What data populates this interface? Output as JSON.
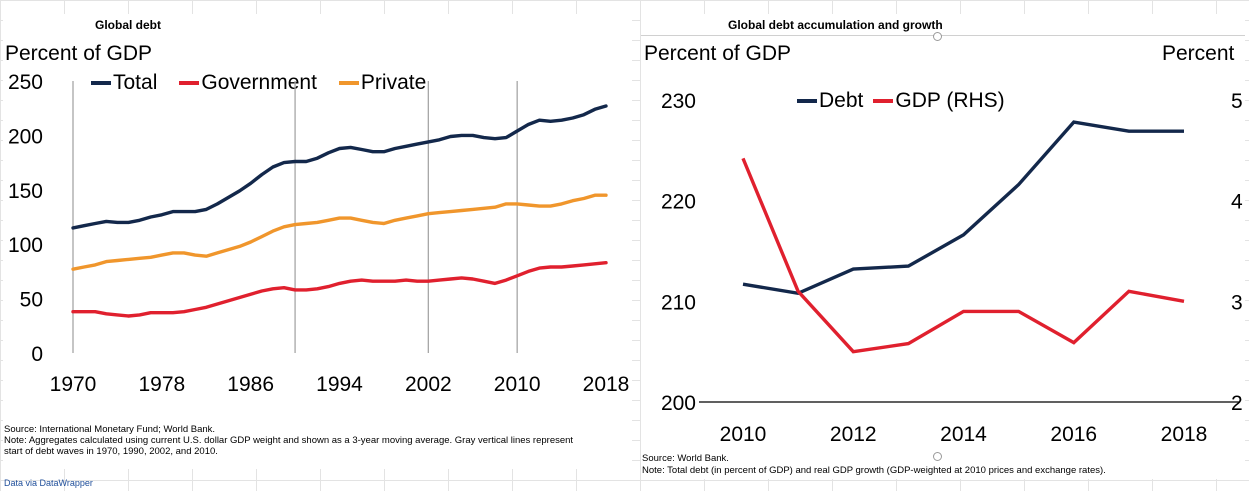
{
  "colors": {
    "total": "#13284b",
    "government": "#e0202e",
    "private": "#f0962c",
    "debt": "#13284b",
    "gdp": "#e0202e",
    "wave_line": "#a6a6a6",
    "link": "#1f4e9a"
  },
  "chart_data": [
    {
      "type": "line",
      "title": "Global debt",
      "ylabel": "Percent of GDP",
      "xlabel": "",
      "xlim": [
        1970,
        2018
      ],
      "ylim": [
        0,
        250
      ],
      "x_ticks": [
        "1970",
        "1978",
        "1986",
        "1994",
        "2002",
        "2010",
        "2018"
      ],
      "y_ticks": [
        "0",
        "50",
        "100",
        "150",
        "200",
        "250"
      ],
      "wave_years": [
        1970,
        1990,
        2002,
        2010
      ],
      "x": [
        1970,
        1971,
        1972,
        1973,
        1974,
        1975,
        1976,
        1977,
        1978,
        1979,
        1980,
        1981,
        1982,
        1983,
        1984,
        1985,
        1986,
        1987,
        1988,
        1989,
        1990,
        1991,
        1992,
        1993,
        1994,
        1995,
        1996,
        1997,
        1998,
        1999,
        2000,
        2001,
        2002,
        2003,
        2004,
        2005,
        2006,
        2007,
        2008,
        2009,
        2010,
        2011,
        2012,
        2013,
        2014,
        2015,
        2016,
        2017,
        2018
      ],
      "series": [
        {
          "name": "Total",
          "color": "#13284b",
          "values": [
            115,
            117,
            119,
            121,
            120,
            120,
            122,
            125,
            127,
            130,
            130,
            130,
            132,
            137,
            143,
            149,
            156,
            164,
            171,
            175,
            176,
            176,
            179,
            184,
            188,
            189,
            187,
            185,
            185,
            188,
            190,
            192,
            194,
            196,
            199,
            200,
            200,
            198,
            197,
            198,
            204,
            210,
            214,
            213,
            214,
            216,
            219,
            224,
            227
          ]
        },
        {
          "name": "Government",
          "color": "#e0202e",
          "values": [
            38,
            38,
            38,
            36,
            35,
            34,
            35,
            37,
            37,
            37,
            38,
            40,
            42,
            45,
            48,
            51,
            54,
            57,
            59,
            60,
            58,
            58,
            59,
            61,
            64,
            66,
            67,
            66,
            66,
            66,
            67,
            66,
            66,
            67,
            68,
            69,
            68,
            66,
            64,
            67,
            71,
            75,
            78,
            79,
            79,
            80,
            81,
            82,
            83
          ]
        },
        {
          "name": "Private",
          "color": "#f0962c",
          "values": [
            77,
            79,
            81,
            84,
            85,
            86,
            87,
            88,
            90,
            92,
            92,
            90,
            89,
            92,
            95,
            98,
            102,
            107,
            112,
            116,
            118,
            119,
            120,
            122,
            124,
            124,
            122,
            120,
            119,
            122,
            124,
            126,
            128,
            129,
            130,
            131,
            132,
            133,
            134,
            137,
            137,
            136,
            135,
            135,
            137,
            140,
            142,
            145,
            145
          ]
        }
      ]
    },
    {
      "type": "line",
      "title": "Global debt accumulation and growth",
      "ylabel": "Percent of GDP",
      "ylabel_right": "Percent",
      "xlim": [
        2010,
        2018
      ],
      "ylim": [
        200,
        230
      ],
      "ylim_right": [
        2,
        5
      ],
      "x_ticks": [
        "2010",
        "2012",
        "2014",
        "2016",
        "2018"
      ],
      "y_ticks": [
        "200",
        "210",
        "220",
        "230"
      ],
      "y_ticks_right": [
        "2",
        "3",
        "4",
        "5"
      ],
      "x": [
        2010,
        2011,
        2012,
        2013,
        2014,
        2015,
        2016,
        2017,
        2018
      ],
      "series": [
        {
          "name": "Debt",
          "axis": "left",
          "color": "#13284b",
          "values": [
            211.7,
            210.8,
            213.2,
            213.5,
            216.6,
            221.6,
            227.8,
            226.9,
            226.9
          ]
        },
        {
          "name": "GDP (RHS)",
          "axis": "right",
          "color": "#e0202e",
          "values": [
            4.42,
            3.1,
            2.5,
            2.58,
            2.9,
            2.9,
            2.59,
            3.1,
            3.0
          ]
        }
      ]
    }
  ],
  "left": {
    "title": "Global debt",
    "unit": "Percent of GDP",
    "legend": [
      "Total",
      "Government",
      "Private"
    ],
    "source": "Source: International Monetary Fund; World Bank.",
    "note_line1": "Note: Aggregates calculated using current U.S. dollar GDP weight and shown as a 3-year moving average. Gray vertical lines represent",
    "note_line2": "start of debt waves in 1970, 1990, 2002, and 2010.",
    "link": "Data via DataWrapper"
  },
  "right": {
    "title": "Global debt accumulation and growth",
    "unit_left": "Percent of GDP",
    "unit_right": "Percent",
    "legend": [
      "Debt",
      "GDP (RHS)"
    ],
    "source": "Source: World Bank.",
    "note": "Note: Total debt (in percent of GDP) and real GDP growth (GDP-weighted at 2010 prices and exchange rates)."
  }
}
